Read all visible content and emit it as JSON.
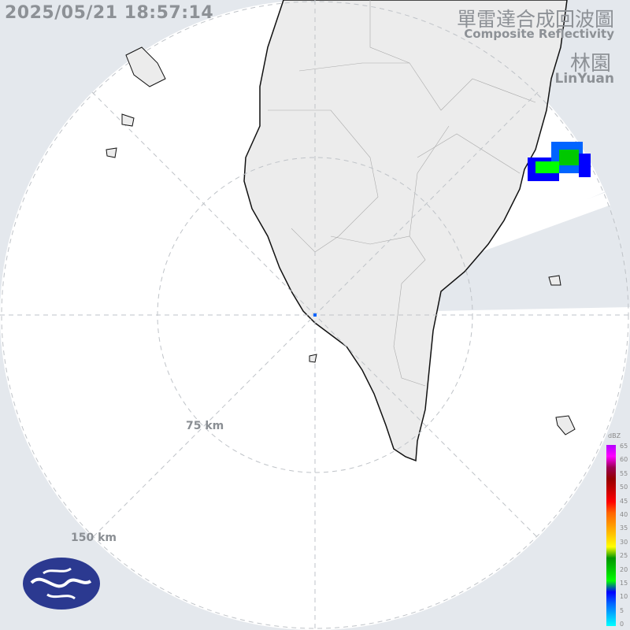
{
  "header": {
    "timestamp": "2025/05/21 18:57:14",
    "product_title_zh": "單雷達合成回波圖",
    "product_title_en": "Composite Reflectivity",
    "site_name_zh": "林園",
    "site_name_en": "LinYuan"
  },
  "range_rings": {
    "ring_1_label": "75 km",
    "ring_2_label": "150 km"
  },
  "legend": {
    "unit": "dBZ",
    "ticks": [
      "65",
      "60",
      "55",
      "50",
      "45",
      "40",
      "35",
      "30",
      "25",
      "20",
      "15",
      "10",
      "5",
      "0"
    ],
    "colors": [
      "#00ffff",
      "#00b4ff",
      "#0064ff",
      "#0000ff",
      "#00ff00",
      "#00c800",
      "#009600",
      "#ffff00",
      "#ffc800",
      "#ff9600",
      "#ff6400",
      "#ff0000",
      "#c80000",
      "#960000",
      "#9a0050",
      "#ff00ff",
      "#b400ff"
    ]
  },
  "logo": {
    "name": "cwa-logo"
  }
}
